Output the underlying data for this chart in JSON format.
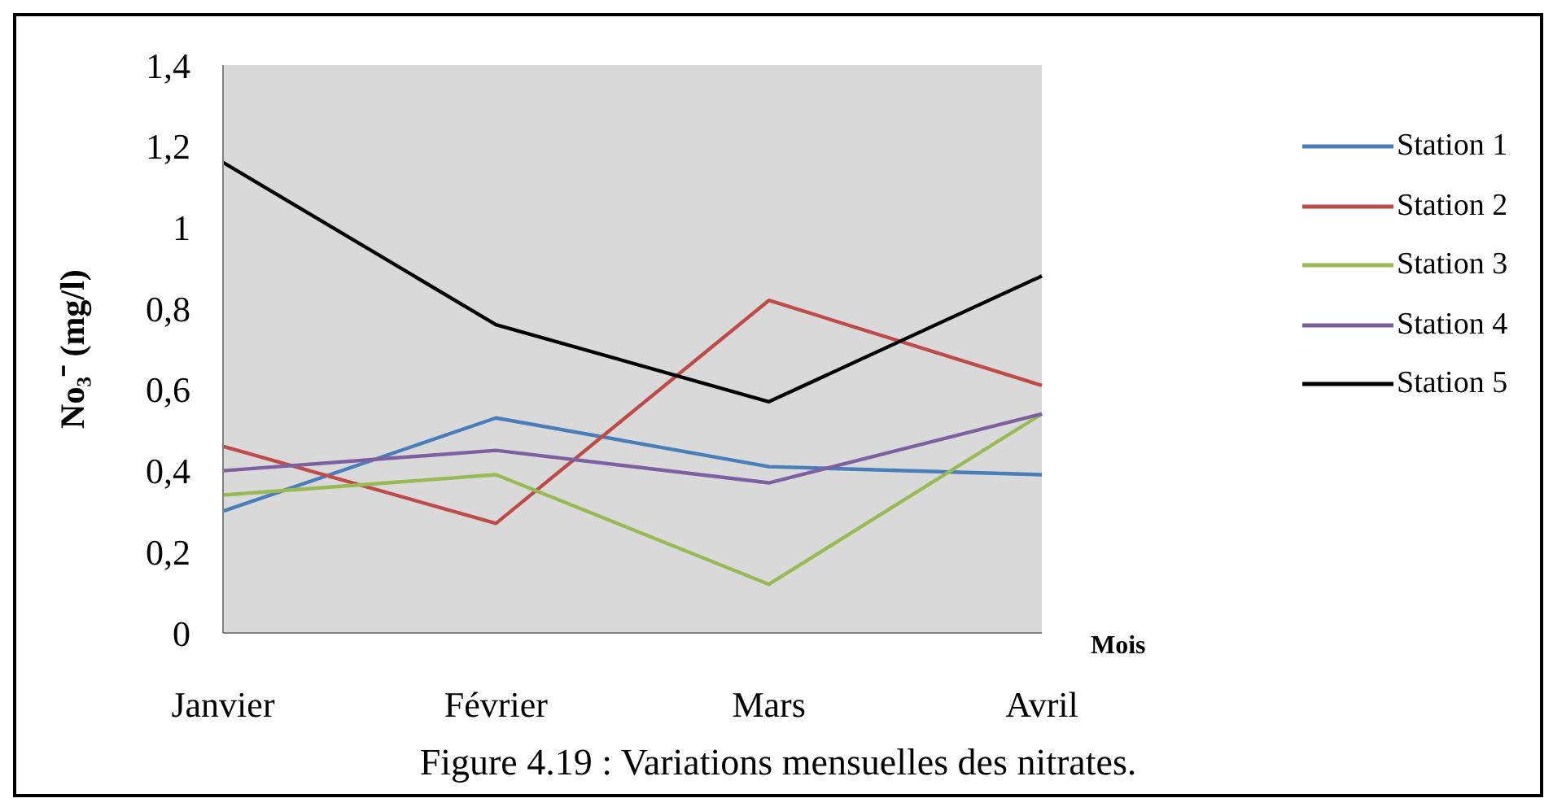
{
  "chart_data": {
    "type": "line",
    "title": "Figure 4.19 : Variations mensuelles des nitrates.",
    "xlabel": "Mois",
    "ylabel": "No₃⁻ (mg/l)",
    "categories": [
      "Janvier",
      "Février",
      "Mars",
      "Avril"
    ],
    "series": [
      {
        "name": "Station 1",
        "color": "#4a7ebb",
        "values": [
          0.3,
          0.53,
          0.41,
          0.39
        ]
      },
      {
        "name": "Station 2",
        "color": "#be4b48",
        "values": [
          0.46,
          0.27,
          0.82,
          0.61
        ]
      },
      {
        "name": "Station 3",
        "color": "#98b954",
        "values": [
          0.34,
          0.39,
          0.12,
          0.54
        ]
      },
      {
        "name": "Station 4",
        "color": "#7d60a0",
        "values": [
          0.4,
          0.45,
          0.37,
          0.54
        ]
      },
      {
        "name": "Station 5",
        "color": "#000000",
        "values": [
          1.16,
          0.76,
          0.57,
          0.88
        ]
      }
    ],
    "ylim": [
      0,
      1.4
    ],
    "yticks": [
      0,
      {
        "value": 0.2,
        "label": "0,2"
      },
      {
        "value": 0.4,
        "label": "0,4"
      },
      {
        "value": 0.6,
        "label": "0,6"
      },
      {
        "value": 0.8,
        "label": "0,8"
      },
      1,
      {
        "value": 1.2,
        "label": "1,2"
      },
      {
        "value": 1.4,
        "label": "1,4"
      }
    ],
    "legend": "right",
    "marker": "none",
    "line_style": "solid"
  }
}
